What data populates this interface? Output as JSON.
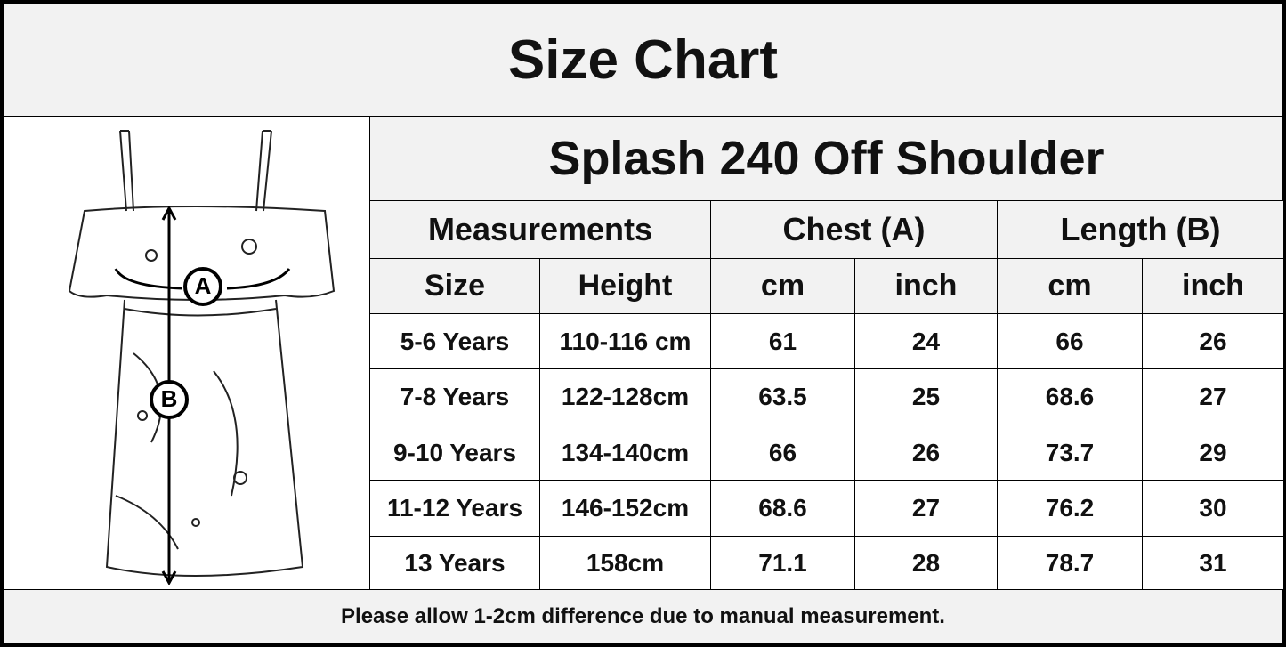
{
  "header": {
    "title": "Size Chart"
  },
  "illustration": {
    "labels": [
      "A",
      "B"
    ]
  },
  "table": {
    "title": "Splash 240 Off Shoulder",
    "groups": [
      "Measurements",
      "Chest (A)",
      "Length (B)"
    ],
    "columns": [
      "Size",
      "Height",
      "cm",
      "inch",
      "cm",
      "inch"
    ],
    "rows": [
      [
        "5-6 Years",
        "110-116 cm",
        61,
        24,
        66,
        26
      ],
      [
        "7-8 Years",
        "122-128cm",
        63.5,
        25,
        68.6,
        27
      ],
      [
        "9-10 Years",
        "134-140cm",
        66,
        26,
        73.7,
        29
      ],
      [
        "11-12 Years",
        "146-152cm",
        68.6,
        27,
        76.2,
        30
      ],
      [
        "13 Years",
        "158cm",
        71.1,
        28,
        78.7,
        31
      ]
    ]
  },
  "footer": {
    "note": "Please allow 1-2cm difference due to manual measurement."
  }
}
